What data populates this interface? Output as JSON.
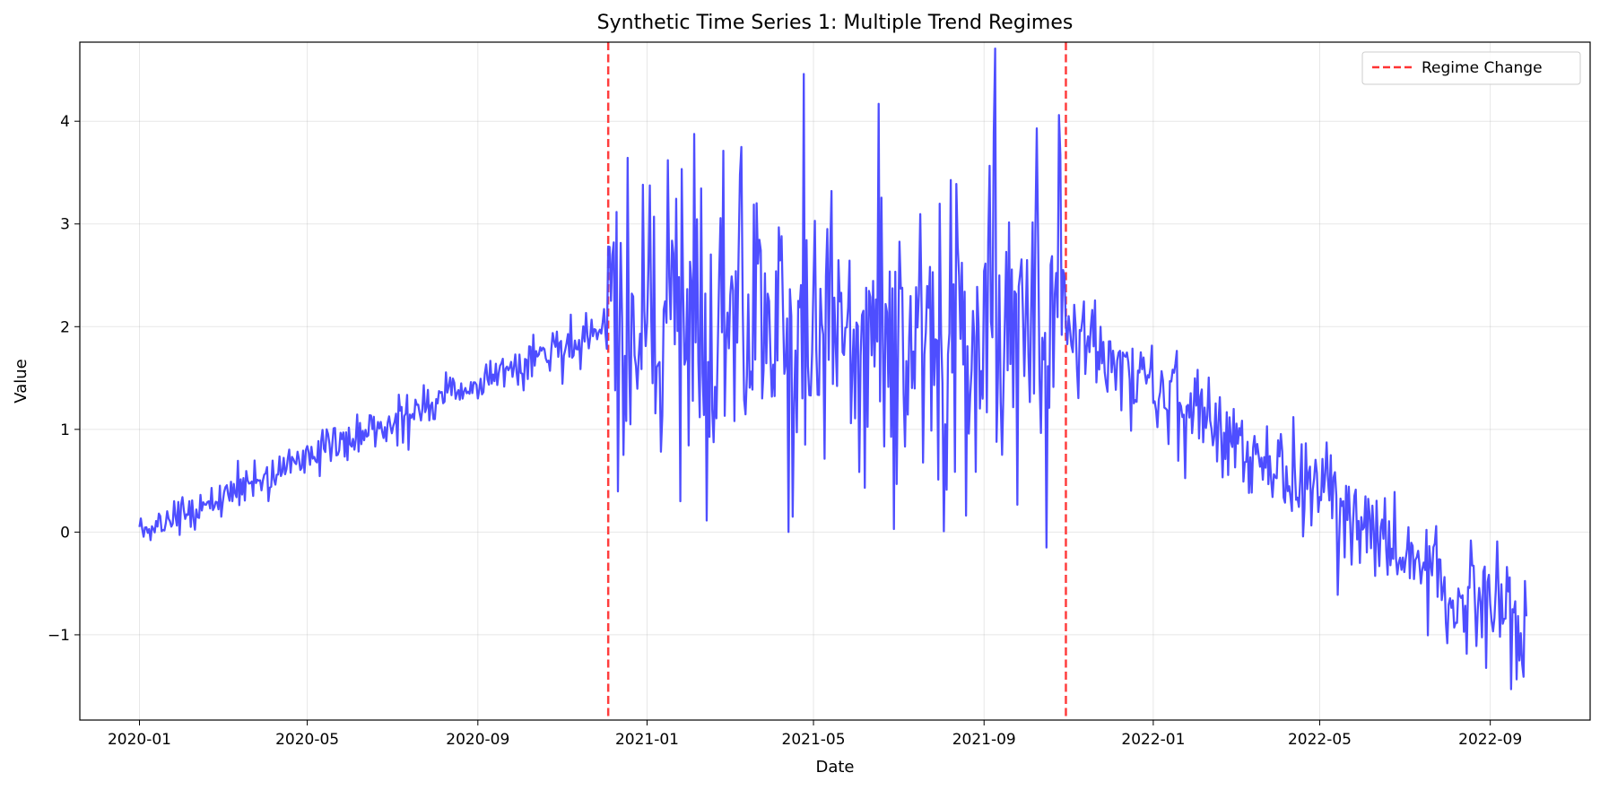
{
  "chart_data": {
    "type": "line",
    "title": "Synthetic Time Series 1: Multiple Trend Regimes",
    "xlabel": "Date",
    "ylabel": "Value",
    "xlim": [
      "2019-11-19",
      "2022-11-12"
    ],
    "ylim": [
      -1.83,
      4.77
    ],
    "x_ticks": [
      "2020-01",
      "2020-05",
      "2020-09",
      "2021-01",
      "2021-05",
      "2021-09",
      "2022-01",
      "2022-05",
      "2022-09"
    ],
    "y_ticks": [
      -1,
      0,
      1,
      2,
      3,
      4
    ],
    "grid": true,
    "legend": {
      "position": "top-right",
      "entries": [
        "Regime Change"
      ]
    },
    "series": [
      {
        "line_color": "#4444ff",
        "x_start": "2020-01-01",
        "x_end": "2022-09-27",
        "frequency": "daily",
        "regimes": [
          {
            "start": "2020-01-01",
            "end": "2020-12-04",
            "from_value": 0.0,
            "to_value": 2.0,
            "noise_sd": 0.1
          },
          {
            "start": "2020-12-04",
            "end": "2021-10-30",
            "from_value": 2.0,
            "to_value": 2.0,
            "noise_sd": 0.8
          },
          {
            "start": "2021-10-30",
            "end": "2022-09-27",
            "from_value": 2.0,
            "to_value": -1.0,
            "noise_sd": 0.25
          }
        ],
        "key_points": [
          {
            "x": "2020-01-01",
            "y": 0.05
          },
          {
            "x": "2020-12-04",
            "y": 2.78
          },
          {
            "x": "2021-01-25",
            "y": 0.3
          },
          {
            "x": "2021-04-16",
            "y": 0.15
          },
          {
            "x": "2021-04-24",
            "y": 4.46
          },
          {
            "x": "2021-06-28",
            "y": 0.03
          },
          {
            "x": "2021-10-16",
            "y": -0.15
          },
          {
            "x": "2021-10-25",
            "y": 4.06
          },
          {
            "x": "2022-09-16",
            "y": -1.53
          },
          {
            "x": "2022-09-27",
            "y": -0.82
          }
        ]
      }
    ],
    "vlines": [
      {
        "name": "Regime Change",
        "x": "2020-12-04",
        "color": "#ff3333",
        "style": "dashed"
      },
      {
        "x": "2021-10-30",
        "color": "#ff3333",
        "style": "dashed"
      }
    ]
  }
}
